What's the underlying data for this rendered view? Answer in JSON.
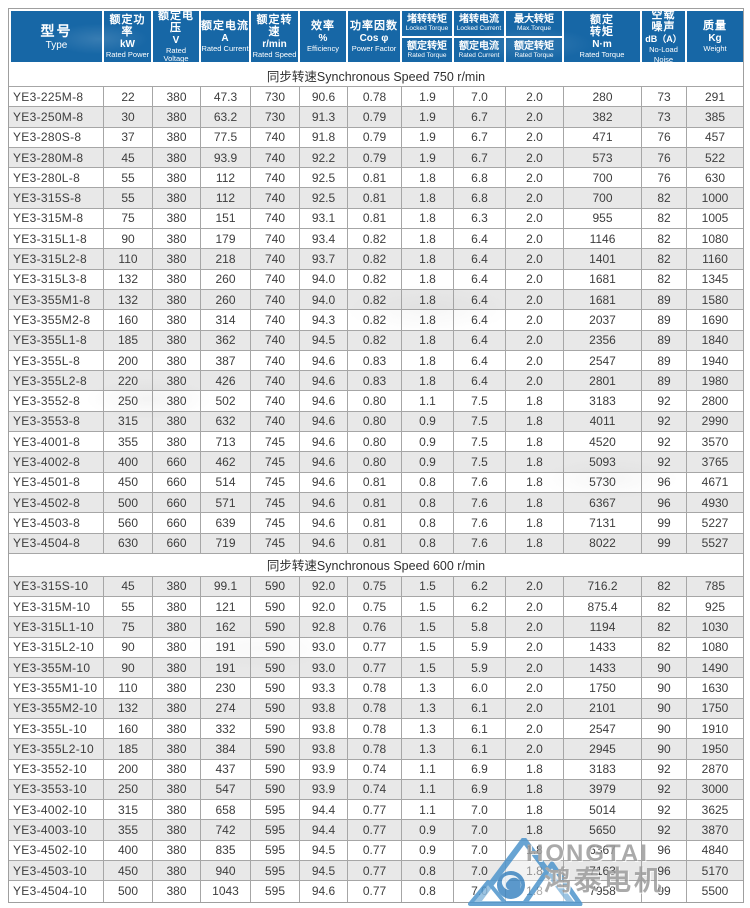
{
  "table": {
    "columns": [
      {
        "id": "type",
        "zh": [
          "型号"
        ],
        "unit": "",
        "en": [
          "Type"
        ],
        "big": true
      },
      {
        "id": "rated-power",
        "zh": [
          "额定功率"
        ],
        "unit": "kW",
        "en": [
          "Rated Power"
        ]
      },
      {
        "id": "rated-voltage",
        "zh": [
          "额定电压"
        ],
        "unit": "V",
        "en": [
          "Rated Voltage"
        ]
      },
      {
        "id": "rated-current",
        "zh": [
          "额定电流"
        ],
        "unit": "A",
        "en": [
          "Rated Current"
        ]
      },
      {
        "id": "rated-speed",
        "zh": [
          "额定转速"
        ],
        "unit": "r/min",
        "en": [
          "Rated Speed"
        ]
      },
      {
        "id": "efficiency",
        "zh": [
          "效率"
        ],
        "unit": "%",
        "en": [
          "Efficiency"
        ]
      },
      {
        "id": "power-factor",
        "zh": [
          "功率因数"
        ],
        "unit": "Cos φ",
        "en": [
          "Power Factor"
        ]
      },
      {
        "id": "locked-torque-ratio",
        "split": {
          "top": {
            "zh": "堵转转矩",
            "en": "Locked Torque"
          },
          "bottom": {
            "zh": "额定转矩",
            "en": "Rated Torque"
          }
        }
      },
      {
        "id": "locked-current-ratio",
        "split": {
          "top": {
            "zh": "堵转电流",
            "en": "Locked Current"
          },
          "bottom": {
            "zh": "额定电流",
            "en": "Rated Current"
          }
        }
      },
      {
        "id": "max-torque-ratio",
        "split": {
          "top": {
            "zh": "最大转矩",
            "en": "Max.Torque"
          },
          "bottom": {
            "zh": "额定转矩",
            "en": "Rated Torque"
          }
        }
      },
      {
        "id": "rated-torque",
        "zh": [
          "额定",
          "转矩"
        ],
        "unit": "N·m",
        "en": [
          "Rated Torque"
        ]
      },
      {
        "id": "no-load-noise",
        "zh": [
          "空载",
          "噪声"
        ],
        "unit": "dB（A）",
        "en": [
          "No-Load",
          "Noise"
        ],
        "narrow": true
      },
      {
        "id": "weight",
        "zh": [
          "质量"
        ],
        "unit": "Kg",
        "en": [
          "Weight"
        ]
      }
    ],
    "sections": [
      {
        "title": "同步转速Synchronous Speed 750 r/min",
        "rows": [
          [
            "YE3-225M-8",
            "22",
            "380",
            "47.3",
            "730",
            "90.6",
            "0.78",
            "1.9",
            "7.0",
            "2.0",
            "280",
            "73",
            "291"
          ],
          [
            "YE3-250M-8",
            "30",
            "380",
            "63.2",
            "730",
            "91.3",
            "0.79",
            "1.9",
            "6.7",
            "2.0",
            "382",
            "73",
            "385"
          ],
          [
            "YE3-280S-8",
            "37",
            "380",
            "77.5",
            "740",
            "91.8",
            "0.79",
            "1.9",
            "6.7",
            "2.0",
            "471",
            "76",
            "457"
          ],
          [
            "YE3-280M-8",
            "45",
            "380",
            "93.9",
            "740",
            "92.2",
            "0.79",
            "1.9",
            "6.7",
            "2.0",
            "573",
            "76",
            "522"
          ],
          [
            "YE3-280L-8",
            "55",
            "380",
            "112",
            "740",
            "92.5",
            "0.81",
            "1.8",
            "6.8",
            "2.0",
            "700",
            "76",
            "630"
          ],
          [
            "YE3-315S-8",
            "55",
            "380",
            "112",
            "740",
            "92.5",
            "0.81",
            "1.8",
            "6.8",
            "2.0",
            "700",
            "82",
            "1000"
          ],
          [
            "YE3-315M-8",
            "75",
            "380",
            "151",
            "740",
            "93.1",
            "0.81",
            "1.8",
            "6.3",
            "2.0",
            "955",
            "82",
            "1005"
          ],
          [
            "YE3-315L1-8",
            "90",
            "380",
            "179",
            "740",
            "93.4",
            "0.82",
            "1.8",
            "6.4",
            "2.0",
            "1146",
            "82",
            "1080"
          ],
          [
            "YE3-315L2-8",
            "110",
            "380",
            "218",
            "740",
            "93.7",
            "0.82",
            "1.8",
            "6.4",
            "2.0",
            "1401",
            "82",
            "1160"
          ],
          [
            "YE3-315L3-8",
            "132",
            "380",
            "260",
            "740",
            "94.0",
            "0.82",
            "1.8",
            "6.4",
            "2.0",
            "1681",
            "82",
            "1345"
          ],
          [
            "YE3-355M1-8",
            "132",
            "380",
            "260",
            "740",
            "94.0",
            "0.82",
            "1.8",
            "6.4",
            "2.0",
            "1681",
            "89",
            "1580"
          ],
          [
            "YE3-355M2-8",
            "160",
            "380",
            "314",
            "740",
            "94.3",
            "0.82",
            "1.8",
            "6.4",
            "2.0",
            "2037",
            "89",
            "1690"
          ],
          [
            "YE3-355L1-8",
            "185",
            "380",
            "362",
            "740",
            "94.5",
            "0.82",
            "1.8",
            "6.4",
            "2.0",
            "2356",
            "89",
            "1840"
          ],
          [
            "YE3-355L-8",
            "200",
            "380",
            "387",
            "740",
            "94.6",
            "0.83",
            "1.8",
            "6.4",
            "2.0",
            "2547",
            "89",
            "1940"
          ],
          [
            "YE3-355L2-8",
            "220",
            "380",
            "426",
            "740",
            "94.6",
            "0.83",
            "1.8",
            "6.4",
            "2.0",
            "2801",
            "89",
            "1980"
          ],
          [
            "YE3-3552-8",
            "250",
            "380",
            "502",
            "740",
            "94.6",
            "0.80",
            "1.1",
            "7.5",
            "1.8",
            "3183",
            "92",
            "2800"
          ],
          [
            "YE3-3553-8",
            "315",
            "380",
            "632",
            "740",
            "94.6",
            "0.80",
            "0.9",
            "7.5",
            "1.8",
            "4011",
            "92",
            "2990"
          ],
          [
            "YE3-4001-8",
            "355",
            "380",
            "713",
            "745",
            "94.6",
            "0.80",
            "0.9",
            "7.5",
            "1.8",
            "4520",
            "92",
            "3570"
          ],
          [
            "YE3-4002-8",
            "400",
            "660",
            "462",
            "745",
            "94.6",
            "0.80",
            "0.9",
            "7.5",
            "1.8",
            "5093",
            "92",
            "3765"
          ],
          [
            "YE3-4501-8",
            "450",
            "660",
            "514",
            "745",
            "94.6",
            "0.81",
            "0.8",
            "7.6",
            "1.8",
            "5730",
            "96",
            "4671"
          ],
          [
            "YE3-4502-8",
            "500",
            "660",
            "571",
            "745",
            "94.6",
            "0.81",
            "0.8",
            "7.6",
            "1.8",
            "6367",
            "96",
            "4930"
          ],
          [
            "YE3-4503-8",
            "560",
            "660",
            "639",
            "745",
            "94.6",
            "0.81",
            "0.8",
            "7.6",
            "1.8",
            "7131",
            "99",
            "5227"
          ],
          [
            "YE3-4504-8",
            "630",
            "660",
            "719",
            "745",
            "94.6",
            "0.81",
            "0.8",
            "7.6",
            "1.8",
            "8022",
            "99",
            "5527"
          ]
        ]
      },
      {
        "title": "同步转速Synchronous Speed 600 r/min",
        "rows": [
          [
            "YE3-315S-10",
            "45",
            "380",
            "99.1",
            "590",
            "92.0",
            "0.75",
            "1.5",
            "6.2",
            "2.0",
            "716.2",
            "82",
            "785"
          ],
          [
            "YE3-315M-10",
            "55",
            "380",
            "121",
            "590",
            "92.0",
            "0.75",
            "1.5",
            "6.2",
            "2.0",
            "875.4",
            "82",
            "925"
          ],
          [
            "YE3-315L1-10",
            "75",
            "380",
            "162",
            "590",
            "92.8",
            "0.76",
            "1.5",
            "5.8",
            "2.0",
            "1194",
            "82",
            "1030"
          ],
          [
            "YE3-315L2-10",
            "90",
            "380",
            "191",
            "590",
            "93.0",
            "0.77",
            "1.5",
            "5.9",
            "2.0",
            "1433",
            "82",
            "1080"
          ],
          [
            "YE3-355M-10",
            "90",
            "380",
            "191",
            "590",
            "93.0",
            "0.77",
            "1.5",
            "5.9",
            "2.0",
            "1433",
            "90",
            "1490"
          ],
          [
            "YE3-355M1-10",
            "110",
            "380",
            "230",
            "590",
            "93.3",
            "0.78",
            "1.3",
            "6.0",
            "2.0",
            "1750",
            "90",
            "1630"
          ],
          [
            "YE3-355M2-10",
            "132",
            "380",
            "274",
            "590",
            "93.8",
            "0.78",
            "1.3",
            "6.1",
            "2.0",
            "2101",
            "90",
            "1750"
          ],
          [
            "YE3-355L-10",
            "160",
            "380",
            "332",
            "590",
            "93.8",
            "0.78",
            "1.3",
            "6.1",
            "2.0",
            "2547",
            "90",
            "1910"
          ],
          [
            "YE3-355L2-10",
            "185",
            "380",
            "384",
            "590",
            "93.8",
            "0.78",
            "1.3",
            "6.1",
            "2.0",
            "2945",
            "90",
            "1950"
          ],
          [
            "YE3-3552-10",
            "200",
            "380",
            "437",
            "590",
            "93.9",
            "0.74",
            "1.1",
            "6.9",
            "1.8",
            "3183",
            "92",
            "2870"
          ],
          [
            "YE3-3553-10",
            "250",
            "380",
            "547",
            "590",
            "93.9",
            "0.74",
            "1.1",
            "6.9",
            "1.8",
            "3979",
            "92",
            "3000"
          ],
          [
            "YE3-4002-10",
            "315",
            "380",
            "658",
            "595",
            "94.4",
            "0.77",
            "1.1",
            "7.0",
            "1.8",
            "5014",
            "92",
            "3625"
          ],
          [
            "YE3-4003-10",
            "355",
            "380",
            "742",
            "595",
            "94.4",
            "0.77",
            "0.9",
            "7.0",
            "1.8",
            "5650",
            "92",
            "3870"
          ],
          [
            "YE3-4502-10",
            "400",
            "380",
            "835",
            "595",
            "94.5",
            "0.77",
            "0.9",
            "7.0",
            "1.8",
            "6367",
            "96",
            "4840"
          ],
          [
            "YE3-4503-10",
            "450",
            "380",
            "940",
            "595",
            "94.5",
            "0.77",
            "0.8",
            "7.0",
            "1.8",
            "7163",
            "96",
            "5170"
          ],
          [
            "YE3-4504-10",
            "500",
            "380",
            "1043",
            "595",
            "94.6",
            "0.77",
            "0.8",
            "7.0",
            "1.8",
            "7958",
            "99",
            "5500"
          ]
        ]
      }
    ]
  },
  "watermark": {
    "brand": "HONGTAI",
    "brand_zh": "鸿泰电机"
  },
  "colors": {
    "header_bg": "#1767a6",
    "header_text": "#ffffff",
    "row_stripe": "#e8e8e8",
    "grid_border": "#a6a6a6",
    "body_text": "#3d3d3d",
    "watermark_gray": "#9c9c9c",
    "logo_blue": "#4e95cc"
  }
}
